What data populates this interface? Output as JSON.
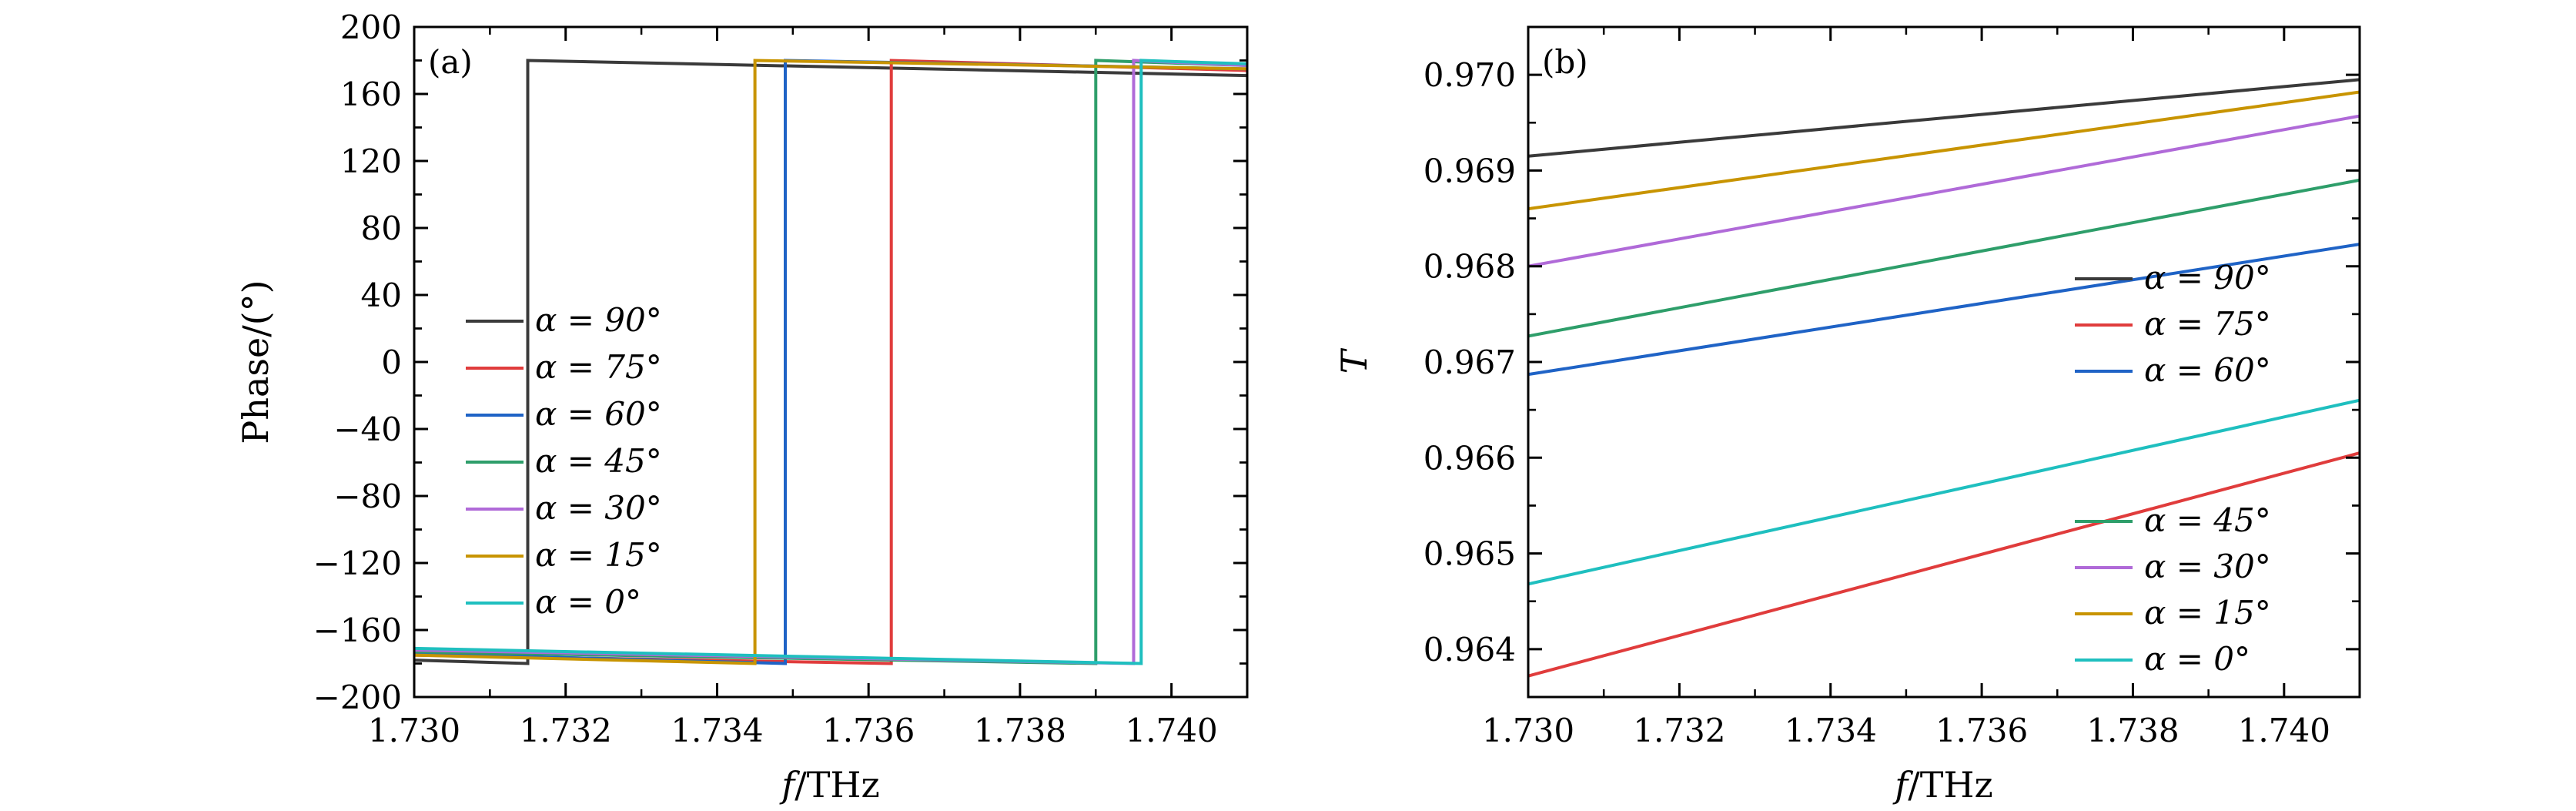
{
  "chart_data": [
    {
      "type": "line",
      "panel_label": "(a)",
      "xlabel": "f/THz",
      "xlabel_parts": {
        "italic": "f",
        "rest": "/THz"
      },
      "ylabel": "Phase/(°)",
      "xlim": [
        1.73,
        1.741
      ],
      "ylim": [
        -200,
        200
      ],
      "xticks": [
        1.73,
        1.732,
        1.734,
        1.736,
        1.738,
        1.74
      ],
      "xtick_labels": [
        "1.730",
        "1.732",
        "1.734",
        "1.736",
        "1.738",
        "1.740"
      ],
      "yticks": [
        200,
        160,
        120,
        80,
        40,
        0,
        -40,
        -80,
        -120,
        -160,
        -200
      ],
      "ytick_labels": [
        "200",
        "160",
        "120",
        "80",
        "40",
        "0",
        "−40",
        "−80",
        "−120",
        "−160",
        "−200"
      ],
      "legend_position": "center-left",
      "series": [
        {
          "name": "α = 90°",
          "color": "#3a3a3a",
          "x": [
            1.73,
            1.7315,
            1.7315,
            1.741
          ],
          "y": [
            -178,
            -180,
            180,
            171
          ]
        },
        {
          "name": "α = 75°",
          "color": "#e03c3c",
          "x": [
            1.73,
            1.7363,
            1.7363,
            1.741
          ],
          "y": [
            -175,
            -180,
            180,
            174
          ]
        },
        {
          "name": "α = 60°",
          "color": "#1f63c6",
          "x": [
            1.73,
            1.7349,
            1.7349,
            1.741
          ],
          "y": [
            -174,
            -180,
            180,
            175
          ]
        },
        {
          "name": "α = 45°",
          "color": "#2e9e6a",
          "x": [
            1.73,
            1.739,
            1.739,
            1.741
          ],
          "y": [
            -173,
            -180,
            180,
            177
          ]
        },
        {
          "name": "α = 30°",
          "color": "#b06ad8",
          "x": [
            1.73,
            1.7395,
            1.7395,
            1.741
          ],
          "y": [
            -172,
            -180,
            180,
            177
          ]
        },
        {
          "name": "α = 15°",
          "color": "#c89400",
          "x": [
            1.73,
            1.7345,
            1.7345,
            1.741
          ],
          "y": [
            -175,
            -180,
            180,
            175
          ]
        },
        {
          "name": "α = 0°",
          "color": "#1fbfbf",
          "x": [
            1.73,
            1.7396,
            1.7396,
            1.741
          ],
          "y": [
            -171,
            -180,
            180,
            178
          ]
        }
      ]
    },
    {
      "type": "line",
      "panel_label": "(b)",
      "xlabel": "f/THz",
      "xlabel_parts": {
        "italic": "f",
        "rest": "/THz"
      },
      "ylabel": "T",
      "xlim": [
        1.73,
        1.741
      ],
      "ylim": [
        0.9635,
        0.9705
      ],
      "xticks": [
        1.73,
        1.732,
        1.734,
        1.736,
        1.738,
        1.74
      ],
      "xtick_labels": [
        "1.730",
        "1.732",
        "1.734",
        "1.736",
        "1.738",
        "1.740"
      ],
      "yticks": [
        0.97,
        0.969,
        0.968,
        0.967,
        0.966,
        0.965,
        0.964
      ],
      "ytick_labels": [
        "0.970",
        "0.969",
        "0.968",
        "0.967",
        "0.966",
        "0.965",
        "0.964"
      ],
      "legend_position": "right (two groups)",
      "series": [
        {
          "name": "α = 90°",
          "color": "#3a3a3a",
          "x": [
            1.73,
            1.741
          ],
          "y": [
            0.96915,
            0.96995
          ]
        },
        {
          "name": "α = 75°",
          "color": "#e03c3c",
          "x": [
            1.73,
            1.741
          ],
          "y": [
            0.96372,
            0.96605
          ]
        },
        {
          "name": "α = 60°",
          "color": "#1f63c6",
          "x": [
            1.73,
            1.741
          ],
          "y": [
            0.96687,
            0.96823
          ]
        },
        {
          "name": "α = 45°",
          "color": "#2e9e6a",
          "x": [
            1.73,
            1.741
          ],
          "y": [
            0.96727,
            0.9689
          ]
        },
        {
          "name": "α = 30°",
          "color": "#b06ad8",
          "x": [
            1.73,
            1.741
          ],
          "y": [
            0.968,
            0.96957
          ]
        },
        {
          "name": "α = 15°",
          "color": "#c89400",
          "x": [
            1.73,
            1.741
          ],
          "y": [
            0.9686,
            0.96982
          ]
        },
        {
          "name": "α = 0°",
          "color": "#1fbfbf",
          "x": [
            1.73,
            1.741
          ],
          "y": [
            0.96468,
            0.9666
          ]
        }
      ],
      "legend_groups": [
        [
          0,
          1,
          2
        ],
        [
          3,
          4,
          5,
          6
        ]
      ]
    }
  ]
}
